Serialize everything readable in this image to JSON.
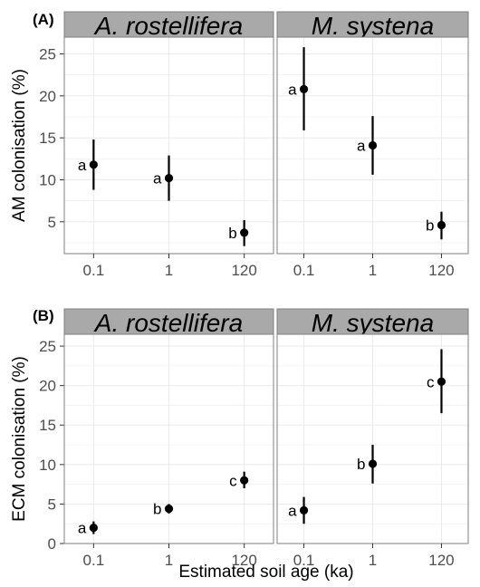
{
  "chart_data": [
    {
      "type": "scatter",
      "panel_label": "(A)",
      "ylabel": "AM colonisation (%)",
      "xlabel": "",
      "categories": [
        "0.1",
        "1",
        "120"
      ],
      "ylim": [
        1.2,
        27
      ],
      "yticks": [
        5,
        10,
        15,
        20,
        25
      ],
      "grid": true,
      "facets": [
        {
          "title": "A. rostellifera",
          "points": [
            {
              "x": "0.1",
              "y": 11.8,
              "lower": 8.8,
              "upper": 14.8,
              "letter": "a"
            },
            {
              "x": "1",
              "y": 10.2,
              "lower": 7.5,
              "upper": 12.9,
              "letter": "a"
            },
            {
              "x": "120",
              "y": 3.7,
              "lower": 2.1,
              "upper": 5.2,
              "letter": "b"
            }
          ]
        },
        {
          "title": "M. systena",
          "points": [
            {
              "x": "0.1",
              "y": 20.8,
              "lower": 15.9,
              "upper": 25.8,
              "letter": "a"
            },
            {
              "x": "1",
              "y": 14.1,
              "lower": 10.6,
              "upper": 17.6,
              "letter": "a"
            },
            {
              "x": "120",
              "y": 4.6,
              "lower": 2.9,
              "upper": 6.2,
              "letter": "b"
            }
          ]
        }
      ]
    },
    {
      "type": "scatter",
      "panel_label": "(B)",
      "ylabel": "ECM colonisation (%)",
      "xlabel": "Estimated soil age (ka)",
      "categories": [
        "0.1",
        "1",
        "120"
      ],
      "ylim": [
        0,
        26.5
      ],
      "yticks": [
        0,
        5,
        10,
        15,
        20,
        25
      ],
      "grid": true,
      "facets": [
        {
          "title": "A. rostellifera",
          "points": [
            {
              "x": "0.1",
              "y": 2.0,
              "lower": 1.2,
              "upper": 2.8,
              "letter": "a"
            },
            {
              "x": "1",
              "y": 4.4,
              "lower": 3.8,
              "upper": 5.0,
              "letter": "b"
            },
            {
              "x": "120",
              "y": 8.0,
              "lower": 7.0,
              "upper": 9.1,
              "letter": "c"
            }
          ]
        },
        {
          "title": "M. systena",
          "points": [
            {
              "x": "0.1",
              "y": 4.2,
              "lower": 2.5,
              "upper": 5.9,
              "letter": "a"
            },
            {
              "x": "1",
              "y": 10.1,
              "lower": 7.6,
              "upper": 12.5,
              "letter": "b"
            },
            {
              "x": "120",
              "y": 20.5,
              "lower": 16.5,
              "upper": 24.6,
              "letter": "c"
            }
          ]
        }
      ]
    }
  ],
  "colors": {
    "strip_background": "#a9a9a9",
    "panel_border": "#7f7f7f",
    "gridline": "#ebebeb",
    "point": "#000000"
  }
}
